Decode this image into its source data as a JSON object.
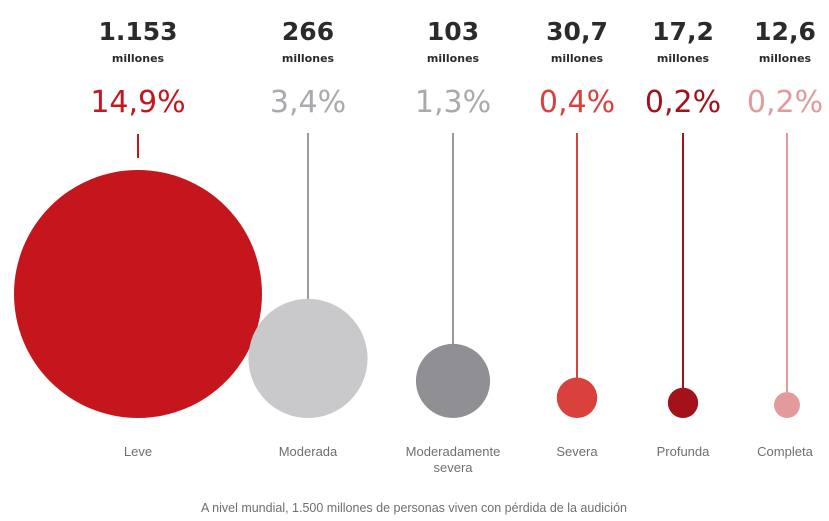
{
  "chart_data": {
    "type": "bubble",
    "unit_label": "millones",
    "categories": [
      {
        "label": "Leve",
        "value_label": "1.153",
        "value": 1153,
        "percent_label": "14,9%",
        "percent": 14.9,
        "color": "#c4161c"
      },
      {
        "label": "Moderada",
        "value_label": "266",
        "value": 266,
        "percent_label": "3,4%",
        "percent": 3.4,
        "color": "#c9c9cc"
      },
      {
        "label": "Moderadamente severa",
        "value_label": "103",
        "value": 103,
        "percent_label": "1,3%",
        "percent": 1.3,
        "color": "#8f8f94"
      },
      {
        "label": "Severa",
        "value_label": "30,7",
        "value": 30.7,
        "percent_label": "0,4%",
        "percent": 0.4,
        "color": "#d9413c"
      },
      {
        "label": "Profunda",
        "value_label": "17,2",
        "value": 17.2,
        "percent_label": "0,2%",
        "percent": 0.2,
        "color": "#a3111b"
      },
      {
        "label": "Completa",
        "value_label": "12,6",
        "value": 12.6,
        "percent_label": "0,2%",
        "percent": 0.2,
        "color": "#e29a9c"
      }
    ],
    "footnote": "A nivel mundial, 1.500 millones de personas viven con pérdida de la audición"
  }
}
